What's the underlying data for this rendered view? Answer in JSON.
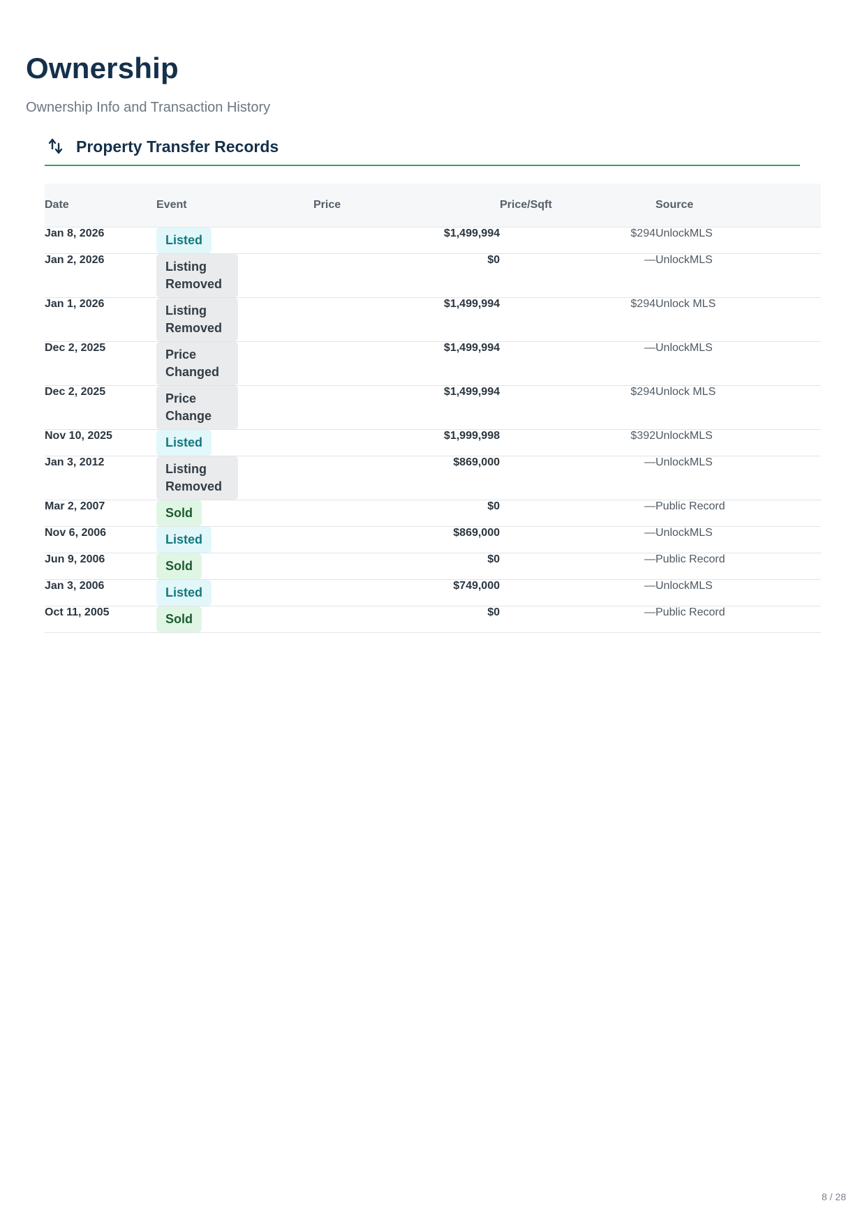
{
  "page": {
    "title": "Ownership",
    "subtitle": "Ownership Info and Transaction History",
    "page_number": "8 / 28"
  },
  "section": {
    "title": "Property Transfer Records",
    "icon": "transfer-arrows-icon"
  },
  "table": {
    "headers": {
      "date": "Date",
      "event": "Event",
      "price": "Price",
      "price_sqft": "Price/Sqft",
      "source": "Source"
    },
    "rows": [
      {
        "date": "Jan 8, 2026",
        "event": "Listed",
        "event_type": "listed",
        "price": "$1,499,994",
        "price_sqft": "$294",
        "source": "UnlockMLS"
      },
      {
        "date": "Jan 2, 2026",
        "event": "Listing Removed",
        "event_type": "grey",
        "price": "$0",
        "price_sqft": "—",
        "source": "UnlockMLS"
      },
      {
        "date": "Jan 1, 2026",
        "event": "Listing Removed",
        "event_type": "grey",
        "price": "$1,499,994",
        "price_sqft": "$294",
        "source": "Unlock MLS"
      },
      {
        "date": "Dec 2, 2025",
        "event": "Price Changed",
        "event_type": "grey",
        "price": "$1,499,994",
        "price_sqft": "—",
        "source": "UnlockMLS"
      },
      {
        "date": "Dec 2, 2025",
        "event": "Price Change",
        "event_type": "grey",
        "price": "$1,499,994",
        "price_sqft": "$294",
        "source": "Unlock MLS"
      },
      {
        "date": "Nov 10, 2025",
        "event": "Listed",
        "event_type": "listed",
        "price": "$1,999,998",
        "price_sqft": "$392",
        "source": "UnlockMLS"
      },
      {
        "date": "Jan 3, 2012",
        "event": "Listing Removed",
        "event_type": "grey",
        "price": "$869,000",
        "price_sqft": "—",
        "source": "UnlockMLS"
      },
      {
        "date": "Mar 2, 2007",
        "event": "Sold",
        "event_type": "sold",
        "price": "$0",
        "price_sqft": "—",
        "source": "Public Record"
      },
      {
        "date": "Nov 6, 2006",
        "event": "Listed",
        "event_type": "listed",
        "price": "$869,000",
        "price_sqft": "—",
        "source": "UnlockMLS"
      },
      {
        "date": "Jun 9, 2006",
        "event": "Sold",
        "event_type": "sold",
        "price": "$0",
        "price_sqft": "—",
        "source": "Public Record"
      },
      {
        "date": "Jan 3, 2006",
        "event": "Listed",
        "event_type": "listed",
        "price": "$749,000",
        "price_sqft": "—",
        "source": "UnlockMLS"
      },
      {
        "date": "Oct 11, 2005",
        "event": "Sold",
        "event_type": "sold",
        "price": "$0",
        "price_sqft": "—",
        "source": "Public Record"
      }
    ]
  },
  "colors": {
    "heading": "#15304a",
    "accent_line": "#2fa65a",
    "listed_bg": "#e2f7fa",
    "listed_text": "#14797e",
    "sold_bg": "#e0f6e5",
    "sold_text": "#1d5a30",
    "grey_bg": "#e9ebed"
  }
}
